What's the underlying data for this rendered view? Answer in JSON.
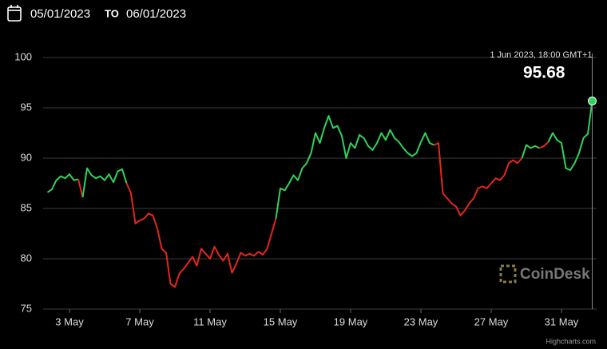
{
  "header": {
    "from": "05/01/2023",
    "separator": "TO",
    "to": "06/01/2023"
  },
  "chart_data": {
    "type": "line",
    "x": [
      "2023-05-01 18:00",
      "2023-05-02 00:00",
      "2023-05-02 06:00",
      "2023-05-02 12:00",
      "2023-05-02 18:00",
      "2023-05-03 00:00",
      "2023-05-03 06:00",
      "2023-05-03 12:00",
      "2023-05-03 18:00",
      "2023-05-04 00:00",
      "2023-05-04 06:00",
      "2023-05-04 12:00",
      "2023-05-04 18:00",
      "2023-05-05 00:00",
      "2023-05-05 06:00",
      "2023-05-05 12:00",
      "2023-05-05 18:00",
      "2023-05-06 00:00",
      "2023-05-06 06:00",
      "2023-05-06 12:00",
      "2023-05-06 18:00",
      "2023-05-07 00:00",
      "2023-05-07 06:00",
      "2023-05-07 12:00",
      "2023-05-07 18:00",
      "2023-05-08 00:00",
      "2023-05-08 06:00",
      "2023-05-08 12:00",
      "2023-05-08 18:00",
      "2023-05-09 00:00",
      "2023-05-09 06:00",
      "2023-05-09 12:00",
      "2023-05-09 18:00",
      "2023-05-10 00:00",
      "2023-05-10 06:00",
      "2023-05-10 12:00",
      "2023-05-10 18:00",
      "2023-05-11 00:00",
      "2023-05-11 06:00",
      "2023-05-11 12:00",
      "2023-05-11 18:00",
      "2023-05-12 00:00",
      "2023-05-12 06:00",
      "2023-05-12 12:00",
      "2023-05-12 18:00",
      "2023-05-13 00:00",
      "2023-05-13 06:00",
      "2023-05-13 12:00",
      "2023-05-13 18:00",
      "2023-05-14 00:00",
      "2023-05-14 06:00",
      "2023-05-14 12:00",
      "2023-05-14 18:00",
      "2023-05-15 00:00",
      "2023-05-15 06:00",
      "2023-05-15 12:00",
      "2023-05-15 18:00",
      "2023-05-16 00:00",
      "2023-05-16 06:00",
      "2023-05-16 12:00",
      "2023-05-16 18:00",
      "2023-05-17 00:00",
      "2023-05-17 06:00",
      "2023-05-17 12:00",
      "2023-05-17 18:00",
      "2023-05-18 00:00",
      "2023-05-18 06:00",
      "2023-05-18 12:00",
      "2023-05-18 18:00",
      "2023-05-19 00:00",
      "2023-05-19 06:00",
      "2023-05-19 12:00",
      "2023-05-19 18:00",
      "2023-05-20 00:00",
      "2023-05-20 06:00",
      "2023-05-20 12:00",
      "2023-05-20 18:00",
      "2023-05-21 00:00",
      "2023-05-21 06:00",
      "2023-05-21 12:00",
      "2023-05-21 18:00",
      "2023-05-22 00:00",
      "2023-05-22 06:00",
      "2023-05-22 12:00",
      "2023-05-22 18:00",
      "2023-05-23 00:00",
      "2023-05-23 06:00",
      "2023-05-23 12:00",
      "2023-05-23 18:00",
      "2023-05-24 00:00",
      "2023-05-24 06:00",
      "2023-05-24 12:00",
      "2023-05-24 18:00",
      "2023-05-25 00:00",
      "2023-05-25 06:00",
      "2023-05-25 12:00",
      "2023-05-25 18:00",
      "2023-05-26 00:00",
      "2023-05-26 06:00",
      "2023-05-26 12:00",
      "2023-05-26 18:00",
      "2023-05-27 00:00",
      "2023-05-27 06:00",
      "2023-05-27 12:00",
      "2023-05-27 18:00",
      "2023-05-28 00:00",
      "2023-05-28 06:00",
      "2023-05-28 12:00",
      "2023-05-28 18:00",
      "2023-05-29 00:00",
      "2023-05-29 06:00",
      "2023-05-29 12:00",
      "2023-05-29 18:00",
      "2023-05-30 00:00",
      "2023-05-30 06:00",
      "2023-05-30 12:00",
      "2023-05-30 18:00",
      "2023-05-31 00:00",
      "2023-05-31 06:00",
      "2023-05-31 12:00",
      "2023-05-31 18:00",
      "2023-06-01 00:00",
      "2023-06-01 06:00",
      "2023-06-01 12:00",
      "2023-06-01 18:00"
    ],
    "series": [
      {
        "color": "#2fd35a",
        "down_color": "#e5261b",
        "values": [
          86.6,
          86.9,
          87.8,
          88.2,
          88.0,
          88.4,
          87.8,
          87.9,
          86.1,
          89.0,
          88.3,
          88.0,
          88.2,
          87.8,
          88.4,
          87.6,
          88.7,
          88.9,
          87.5,
          86.5,
          83.5,
          83.8,
          84.0,
          84.5,
          84.3,
          83.0,
          81.0,
          80.6,
          77.5,
          77.2,
          78.5,
          79.0,
          79.6,
          80.2,
          79.3,
          81.0,
          80.5,
          80.0,
          81.2,
          80.4,
          79.8,
          80.5,
          78.6,
          79.5,
          80.6,
          80.3,
          80.5,
          80.3,
          80.7,
          80.4,
          81.0,
          82.5,
          84.0,
          87.0,
          86.8,
          87.5,
          88.3,
          87.8,
          89.0,
          89.5,
          90.5,
          92.5,
          91.5,
          93.0,
          94.2,
          93.0,
          93.2,
          92.2,
          90.0,
          91.5,
          91.0,
          92.3,
          92.0,
          91.2,
          90.8,
          91.5,
          92.5,
          91.8,
          92.8,
          92.0,
          91.6,
          91.0,
          90.5,
          90.2,
          90.5,
          91.6,
          92.5,
          91.5,
          91.3,
          91.5,
          86.5,
          86.0,
          85.5,
          85.2,
          84.3,
          84.8,
          85.5,
          86.0,
          87.0,
          87.2,
          87.0,
          87.5,
          88.0,
          87.8,
          88.3,
          89.5,
          89.8,
          89.5,
          90.0,
          91.3,
          91.0,
          91.2,
          91.0,
          91.2,
          91.6,
          92.5,
          91.8,
          91.5,
          89.0,
          88.8,
          89.5,
          90.5,
          92.0,
          92.4,
          95.68
        ]
      }
    ],
    "tooltip": {
      "label": "1 Jun 2023, 18:00 GMT+1"
    },
    "xlim": [
      "2023-05-01 12:00",
      "2023-06-02 00:00"
    ],
    "xticks": [
      {
        "value": "2023-05-03 00:00",
        "label": "3 May"
      },
      {
        "value": "2023-05-07 00:00",
        "label": "7 May"
      },
      {
        "value": "2023-05-11 00:00",
        "label": "11 May"
      },
      {
        "value": "2023-05-15 00:00",
        "label": "15 May"
      },
      {
        "value": "2023-05-19 00:00",
        "label": "19 May"
      },
      {
        "value": "2023-05-23 00:00",
        "label": "23 May"
      },
      {
        "value": "2023-05-27 00:00",
        "label": "27 May"
      },
      {
        "value": "2023-05-31 00:00",
        "label": "31 May"
      }
    ],
    "ylim": [
      75,
      100
    ],
    "yticks": [
      75,
      80,
      85,
      90,
      95,
      100
    ],
    "grid": true,
    "watermark": "CoinDesk",
    "credit": "Highcharts.com"
  }
}
